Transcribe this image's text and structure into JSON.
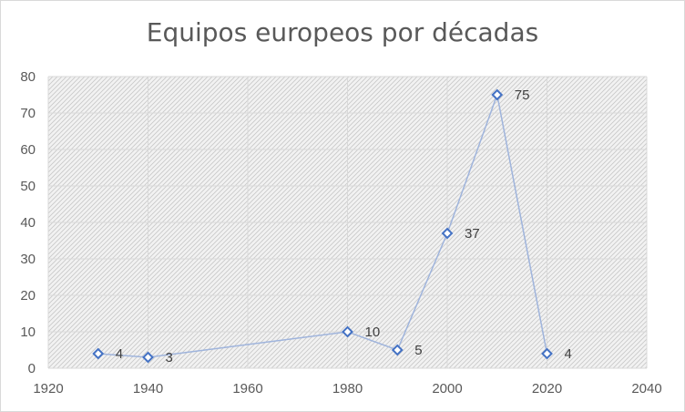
{
  "chart_data": {
    "type": "scatter",
    "title": "Equipos europeos por décadas",
    "xlabel": "",
    "ylabel": "",
    "xlim": [
      1920,
      2040
    ],
    "ylim": [
      0,
      80
    ],
    "x_ticks": [
      1920,
      1940,
      1960,
      1980,
      2000,
      2020,
      2040
    ],
    "y_ticks": [
      0,
      10,
      20,
      30,
      40,
      50,
      60,
      70,
      80
    ],
    "grid": true,
    "legend": "none",
    "connected": true,
    "series": [
      {
        "x": [
          1930,
          1940,
          1980,
          1990,
          2000,
          2010,
          2020
        ],
        "y": [
          4,
          3,
          10,
          5,
          37,
          75,
          4
        ],
        "labels": [
          "4",
          "3",
          "10",
          "5",
          "37",
          "75",
          "4"
        ]
      }
    ],
    "colors": {
      "line": "#9fb4dc",
      "marker": "#4472c4",
      "grid": "#d9d9d9",
      "axis_text": "#595959"
    }
  }
}
